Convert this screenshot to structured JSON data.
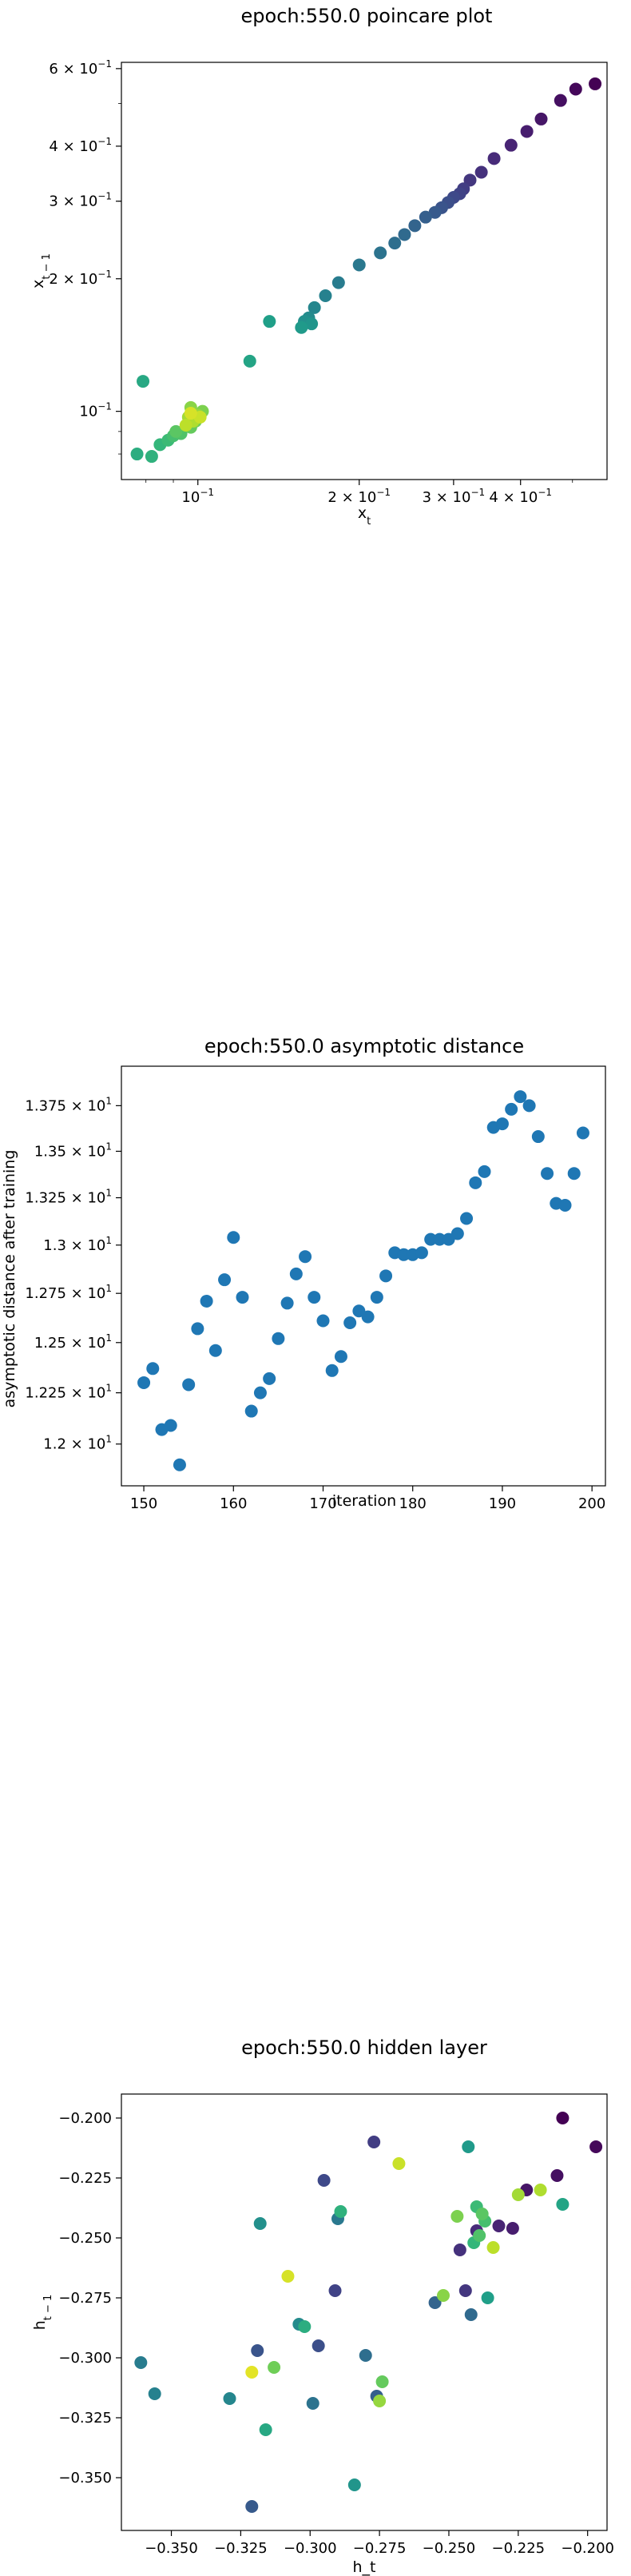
{
  "chart_data": [
    {
      "type": "scatter",
      "title": "epoch:550.0 poincare plot",
      "xlabel": "x_t",
      "ylabel": "x_{t-1}",
      "xscale": "log",
      "yscale": "log",
      "xlim": [
        0.072,
        0.58
      ],
      "ylim": [
        0.07,
        0.62
      ],
      "grid": false,
      "colormap": "viridis",
      "xticks": [
        {
          "v": 0.1,
          "base": "10",
          "exp": "−1"
        },
        {
          "v": 0.2,
          "base": "2 × 10",
          "exp": "−1"
        },
        {
          "v": 0.3,
          "base": "3 × 10",
          "exp": "−1"
        },
        {
          "v": 0.4,
          "base": "4 × 10",
          "exp": "−1"
        }
      ],
      "yticks": [
        {
          "v": 0.1,
          "base": "10",
          "exp": "−1"
        },
        {
          "v": 0.2,
          "base": "2 × 10",
          "exp": "−1"
        },
        {
          "v": 0.3,
          "base": "3 × 10",
          "exp": "−1"
        },
        {
          "v": 0.4,
          "base": "4 × 10",
          "exp": "−1"
        },
        {
          "v": 0.6,
          "base": "6 × 10",
          "exp": "−1"
        }
      ],
      "points": [
        {
          "x": 0.551,
          "y": 0.554,
          "c": 0.0
        },
        {
          "x": 0.507,
          "y": 0.539,
          "c": 0.02
        },
        {
          "x": 0.475,
          "y": 0.508,
          "c": 0.04
        },
        {
          "x": 0.437,
          "y": 0.461,
          "c": 0.06
        },
        {
          "x": 0.411,
          "y": 0.432,
          "c": 0.08
        },
        {
          "x": 0.384,
          "y": 0.402,
          "c": 0.1
        },
        {
          "x": 0.357,
          "y": 0.375,
          "c": 0.12
        },
        {
          "x": 0.338,
          "y": 0.349,
          "c": 0.14
        },
        {
          "x": 0.322,
          "y": 0.335,
          "c": 0.16
        },
        {
          "x": 0.313,
          "y": 0.32,
          "c": 0.18
        },
        {
          "x": 0.308,
          "y": 0.312,
          "c": 0.2
        },
        {
          "x": 0.3,
          "y": 0.306,
          "c": 0.22
        },
        {
          "x": 0.293,
          "y": 0.298,
          "c": 0.24
        },
        {
          "x": 0.285,
          "y": 0.29,
          "c": 0.26
        },
        {
          "x": 0.277,
          "y": 0.283,
          "c": 0.28
        },
        {
          "x": 0.266,
          "y": 0.276,
          "c": 0.3
        },
        {
          "x": 0.254,
          "y": 0.264,
          "c": 0.32
        },
        {
          "x": 0.243,
          "y": 0.252,
          "c": 0.34
        },
        {
          "x": 0.233,
          "y": 0.241,
          "c": 0.36
        },
        {
          "x": 0.219,
          "y": 0.229,
          "c": 0.38
        },
        {
          "x": 0.2,
          "y": 0.215,
          "c": 0.4
        },
        {
          "x": 0.183,
          "y": 0.196,
          "c": 0.42
        },
        {
          "x": 0.173,
          "y": 0.183,
          "c": 0.44
        },
        {
          "x": 0.165,
          "y": 0.172,
          "c": 0.46
        },
        {
          "x": 0.161,
          "y": 0.163,
          "c": 0.48
        },
        {
          "x": 0.158,
          "y": 0.16,
          "c": 0.5
        },
        {
          "x": 0.163,
          "y": 0.158,
          "c": 0.52
        },
        {
          "x": 0.156,
          "y": 0.155,
          "c": 0.54
        },
        {
          "x": 0.136,
          "y": 0.16,
          "c": 0.56
        },
        {
          "x": 0.125,
          "y": 0.13,
          "c": 0.58
        },
        {
          "x": 0.079,
          "y": 0.117,
          "c": 0.6
        },
        {
          "x": 0.077,
          "y": 0.08,
          "c": 0.62
        },
        {
          "x": 0.082,
          "y": 0.079,
          "c": 0.64
        },
        {
          "x": 0.085,
          "y": 0.084,
          "c": 0.66
        },
        {
          "x": 0.088,
          "y": 0.086,
          "c": 0.68
        },
        {
          "x": 0.09,
          "y": 0.088,
          "c": 0.7
        },
        {
          "x": 0.093,
          "y": 0.089,
          "c": 0.72
        },
        {
          "x": 0.091,
          "y": 0.09,
          "c": 0.74
        },
        {
          "x": 0.097,
          "y": 0.092,
          "c": 0.76
        },
        {
          "x": 0.099,
          "y": 0.095,
          "c": 0.78
        },
        {
          "x": 0.102,
          "y": 0.1,
          "c": 0.8
        },
        {
          "x": 0.097,
          "y": 0.102,
          "c": 0.82
        },
        {
          "x": 0.1,
          "y": 0.098,
          "c": 0.84
        },
        {
          "x": 0.096,
          "y": 0.097,
          "c": 0.86
        },
        {
          "x": 0.098,
          "y": 0.095,
          "c": 0.88
        },
        {
          "x": 0.095,
          "y": 0.093,
          "c": 0.9
        },
        {
          "x": 0.101,
          "y": 0.097,
          "c": 0.92
        },
        {
          "x": 0.097,
          "y": 0.099,
          "c": 0.94
        }
      ]
    },
    {
      "type": "scatter",
      "title": "epoch:550.0 asymptotic distance",
      "xlabel": "iteration",
      "ylabel": "asymptotic distance after training",
      "yscale": "log",
      "xlim": [
        147.5,
        201.5
      ],
      "ylim": [
        11.8,
        13.97
      ],
      "grid": false,
      "color": "#1f77b4",
      "xticks": [
        {
          "v": 150,
          "label": "150"
        },
        {
          "v": 160,
          "label": "160"
        },
        {
          "v": 170,
          "label": "170"
        },
        {
          "v": 180,
          "label": "180"
        },
        {
          "v": 190,
          "label": "190"
        },
        {
          "v": 200,
          "label": "200"
        }
      ],
      "yticks": [
        {
          "v": 12.0,
          "base": "1.2 × 10",
          "exp": "1"
        },
        {
          "v": 12.25,
          "base": "1.225 × 10",
          "exp": "1"
        },
        {
          "v": 12.5,
          "base": "1.25 × 10",
          "exp": "1"
        },
        {
          "v": 12.75,
          "base": "1.275 × 10",
          "exp": "1"
        },
        {
          "v": 13.0,
          "base": "1.3 × 10",
          "exp": "1"
        },
        {
          "v": 13.25,
          "base": "1.325 × 10",
          "exp": "1"
        },
        {
          "v": 13.5,
          "base": "1.35 × 10",
          "exp": "1"
        },
        {
          "v": 13.75,
          "base": "1.375 × 10",
          "exp": "1"
        }
      ],
      "x": [
        150,
        151,
        152,
        153,
        154,
        155,
        156,
        157,
        158,
        159,
        160,
        161,
        162,
        163,
        164,
        165,
        166,
        167,
        168,
        169,
        170,
        171,
        172,
        173,
        174,
        175,
        176,
        177,
        178,
        179,
        180,
        181,
        182,
        183,
        184,
        185,
        186,
        187,
        188,
        189,
        190,
        191,
        192,
        193,
        194,
        195,
        196,
        197,
        198,
        199
      ],
      "y": [
        12.3,
        12.37,
        12.07,
        12.09,
        11.9,
        12.29,
        12.57,
        12.71,
        12.46,
        12.82,
        13.04,
        12.73,
        12.16,
        12.25,
        12.32,
        12.52,
        12.7,
        12.85,
        12.94,
        12.73,
        12.61,
        12.36,
        12.43,
        12.6,
        12.66,
        12.63,
        12.73,
        12.84,
        12.96,
        12.95,
        12.95,
        12.96,
        13.03,
        13.03,
        13.03,
        13.06,
        13.14,
        13.33,
        13.39,
        13.63,
        13.65,
        13.73,
        13.8,
        13.75,
        13.58,
        13.38,
        13.22,
        13.21,
        13.38,
        13.6
      ]
    },
    {
      "type": "scatter",
      "title": "epoch:550.0 hidden layer",
      "xlabel": "h_t",
      "ylabel": "h_{t-1}",
      "xlim": [
        -0.368,
        -0.193
      ],
      "ylim": [
        -0.372,
        -0.19
      ],
      "grid": false,
      "colormap": "viridis",
      "xticks": [
        {
          "v": -0.35,
          "label": "−0.350"
        },
        {
          "v": -0.325,
          "label": "−0.325"
        },
        {
          "v": -0.3,
          "label": "−0.300"
        },
        {
          "v": -0.275,
          "label": "−0.275"
        },
        {
          "v": -0.25,
          "label": "−0.250"
        },
        {
          "v": -0.225,
          "label": "−0.225"
        },
        {
          "v": -0.2,
          "label": "−0.200"
        }
      ],
      "yticks": [
        {
          "v": -0.2,
          "label": "−0.200"
        },
        {
          "v": -0.225,
          "label": "−0.225"
        },
        {
          "v": -0.25,
          "label": "−0.250"
        },
        {
          "v": -0.275,
          "label": "−0.275"
        },
        {
          "v": -0.3,
          "label": "−0.300"
        },
        {
          "v": -0.325,
          "label": "−0.325"
        },
        {
          "v": -0.35,
          "label": "−0.350"
        }
      ],
      "points": [
        {
          "x": -0.209,
          "y": -0.2,
          "c": 0.0
        },
        {
          "x": -0.197,
          "y": -0.212,
          "c": 0.02
        },
        {
          "x": -0.211,
          "y": -0.224,
          "c": 0.04
        },
        {
          "x": -0.222,
          "y": -0.23,
          "c": 0.06
        },
        {
          "x": -0.227,
          "y": -0.246,
          "c": 0.08
        },
        {
          "x": -0.232,
          "y": -0.245,
          "c": 0.1
        },
        {
          "x": -0.24,
          "y": -0.247,
          "c": 0.12
        },
        {
          "x": -0.246,
          "y": -0.255,
          "c": 0.14
        },
        {
          "x": -0.244,
          "y": -0.272,
          "c": 0.16
        },
        {
          "x": -0.277,
          "y": -0.21,
          "c": 0.18
        },
        {
          "x": -0.291,
          "y": -0.272,
          "c": 0.2
        },
        {
          "x": -0.295,
          "y": -0.226,
          "c": 0.22
        },
        {
          "x": -0.297,
          "y": -0.295,
          "c": 0.24
        },
        {
          "x": -0.319,
          "y": -0.297,
          "c": 0.26
        },
        {
          "x": -0.321,
          "y": -0.362,
          "c": 0.28
        },
        {
          "x": -0.276,
          "y": -0.316,
          "c": 0.3
        },
        {
          "x": -0.255,
          "y": -0.277,
          "c": 0.32
        },
        {
          "x": -0.242,
          "y": -0.282,
          "c": 0.34
        },
        {
          "x": -0.28,
          "y": -0.299,
          "c": 0.36
        },
        {
          "x": -0.299,
          "y": -0.319,
          "c": 0.38
        },
        {
          "x": -0.29,
          "y": -0.242,
          "c": 0.4
        },
        {
          "x": -0.361,
          "y": -0.302,
          "c": 0.42
        },
        {
          "x": -0.356,
          "y": -0.315,
          "c": 0.44
        },
        {
          "x": -0.329,
          "y": -0.317,
          "c": 0.46
        },
        {
          "x": -0.304,
          "y": -0.286,
          "c": 0.48
        },
        {
          "x": -0.318,
          "y": -0.244,
          "c": 0.5
        },
        {
          "x": -0.284,
          "y": -0.353,
          "c": 0.52
        },
        {
          "x": -0.243,
          "y": -0.212,
          "c": 0.54
        },
        {
          "x": -0.236,
          "y": -0.275,
          "c": 0.56
        },
        {
          "x": -0.209,
          "y": -0.236,
          "c": 0.58
        },
        {
          "x": -0.316,
          "y": -0.33,
          "c": 0.6
        },
        {
          "x": -0.302,
          "y": -0.287,
          "c": 0.62
        },
        {
          "x": -0.289,
          "y": -0.239,
          "c": 0.64
        },
        {
          "x": -0.241,
          "y": -0.252,
          "c": 0.66
        },
        {
          "x": -0.24,
          "y": -0.237,
          "c": 0.68
        },
        {
          "x": -0.237,
          "y": -0.243,
          "c": 0.7
        },
        {
          "x": -0.239,
          "y": -0.249,
          "c": 0.72
        },
        {
          "x": -0.238,
          "y": -0.24,
          "c": 0.74
        },
        {
          "x": -0.274,
          "y": -0.31,
          "c": 0.76
        },
        {
          "x": -0.313,
          "y": -0.304,
          "c": 0.78
        },
        {
          "x": -0.247,
          "y": -0.241,
          "c": 0.8
        },
        {
          "x": -0.252,
          "y": -0.274,
          "c": 0.82
        },
        {
          "x": -0.275,
          "y": -0.318,
          "c": 0.84
        },
        {
          "x": -0.225,
          "y": -0.232,
          "c": 0.86
        },
        {
          "x": -0.217,
          "y": -0.23,
          "c": 0.88
        },
        {
          "x": -0.234,
          "y": -0.254,
          "c": 0.9
        },
        {
          "x": -0.268,
          "y": -0.219,
          "c": 0.92
        },
        {
          "x": -0.308,
          "y": -0.266,
          "c": 0.94
        },
        {
          "x": -0.321,
          "y": -0.306,
          "c": 0.96
        }
      ]
    }
  ]
}
